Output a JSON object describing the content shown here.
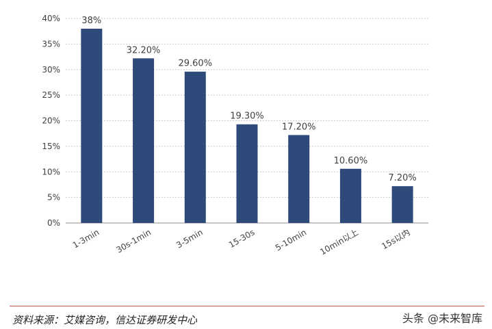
{
  "chart_data": {
    "type": "bar",
    "categories": [
      "1-3min",
      "30s-1min",
      "3-5min",
      "15-30s",
      "5-10min",
      "10min以上",
      "15s以内"
    ],
    "values": [
      38,
      32.2,
      29.6,
      19.3,
      17.2,
      10.6,
      7.2
    ],
    "data_labels": [
      "38%",
      "32.20%",
      "29.60%",
      "19.30%",
      "17.20%",
      "10.60%",
      "7.20%"
    ],
    "y_ticks": [
      0,
      5,
      10,
      15,
      20,
      25,
      30,
      35,
      40
    ],
    "y_tick_labels": [
      "0%",
      "5%",
      "10%",
      "15%",
      "20%",
      "25%",
      "30%",
      "35%",
      "40%"
    ],
    "ylim": [
      0,
      40
    ],
    "grid": true,
    "bar_color": "#2e4a7a",
    "grid_color": "#c8c8c8"
  },
  "footer": {
    "source": "资料来源：艾媒咨询，信达证券研发中心",
    "watermark": "头条 @未来智库"
  }
}
